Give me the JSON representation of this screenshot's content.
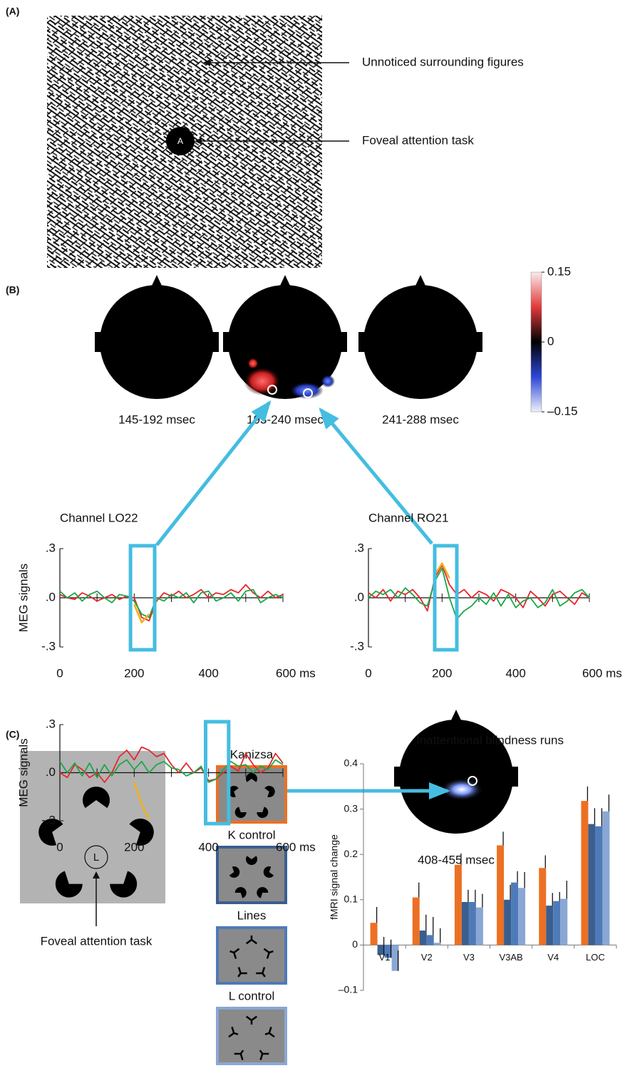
{
  "panel_a": {
    "label": "(A)",
    "fixation_letter": "A",
    "annotations": [
      "Unnoticed surrounding figures",
      "Foveal attention task"
    ]
  },
  "panel_b": {
    "label": "(B)",
    "topomap_labels": [
      "145-192 msec",
      "193-240 msec",
      "241-288 msec",
      "408-455 msec"
    ],
    "colorbar": {
      "lim": [
        -0.15,
        0.15
      ],
      "ticks": [
        0.15,
        0,
        {
          "value": -0.15,
          "label": "–0.15"
        }
      ]
    }
  },
  "panel_c": {
    "label": "(C)",
    "fixation_letter": "L",
    "annotation": "Foveal attention task"
  },
  "chart_data": [
    {
      "type": "line",
      "title": "Channel LO22",
      "y_label": "MEG signals",
      "x": [
        0,
        20,
        40,
        60,
        80,
        100,
        120,
        140,
        160,
        180,
        200,
        220,
        240,
        260,
        280,
        300,
        320,
        340,
        360,
        380,
        400,
        420,
        440,
        460,
        480,
        500,
        520,
        540,
        560,
        580,
        600
      ],
      "series": [
        {
          "color": "#e8262b",
          "values": [
            0.02,
            0.0,
            -0.01,
            0.03,
            0.01,
            -0.02,
            0.0,
            0.02,
            -0.01,
            0.01,
            0.0,
            -0.12,
            -0.14,
            -0.02,
            0.03,
            0.01,
            0.04,
            0.0,
            0.02,
            0.05,
            0.0,
            0.03,
            0.02,
            0.05,
            0.03,
            0.08,
            0.03,
            0.0,
            0.04,
            0.0,
            0.02
          ]
        },
        {
          "color": "#1aa84a",
          "values": [
            0.04,
            0.0,
            0.03,
            -0.02,
            0.02,
            0.04,
            0.0,
            -0.03,
            0.02,
            0.01,
            -0.02,
            -0.1,
            -0.12,
            0.0,
            -0.02,
            0.02,
            0.0,
            0.03,
            -0.03,
            0.03,
            0.04,
            -0.02,
            0.0,
            0.03,
            -0.02,
            0.04,
            0.05,
            -0.03,
            0.0,
            0.02,
            0.0
          ]
        },
        {
          "color": "#f2b01e",
          "values": [
            null,
            null,
            null,
            null,
            null,
            null,
            null,
            null,
            null,
            null,
            -0.04,
            -0.15,
            -0.1,
            null,
            null,
            null,
            null,
            null,
            null,
            null,
            null,
            null,
            null,
            null,
            null,
            null,
            null,
            null,
            null,
            null,
            null
          ]
        }
      ],
      "xlim": [
        0,
        600
      ],
      "ylim": [
        -0.3,
        0.3
      ],
      "xticks": [
        0,
        200,
        400,
        {
          "value": 600,
          "label": "600 ms"
        }
      ],
      "minor_xticks": [
        100,
        300,
        500
      ],
      "yticks": [
        {
          "value": 0.3,
          "label": ".3"
        },
        {
          "value": 0,
          "label": ".0"
        },
        {
          "value": -0.3,
          "label": "-.3"
        }
      ],
      "highlight": [
        190,
        255
      ]
    },
    {
      "type": "line",
      "title": "Channel RO21",
      "x": [
        0,
        20,
        40,
        60,
        80,
        100,
        120,
        140,
        160,
        180,
        200,
        220,
        240,
        260,
        280,
        300,
        320,
        340,
        360,
        380,
        400,
        420,
        440,
        460,
        480,
        500,
        520,
        540,
        560,
        580,
        600
      ],
      "series": [
        {
          "color": "#e8262b",
          "values": [
            0.03,
            0.0,
            0.05,
            -0.02,
            0.04,
            0.02,
            0.05,
            0.0,
            -0.08,
            0.12,
            0.2,
            0.08,
            0.02,
            0.05,
            0.0,
            0.04,
            0.02,
            -0.02,
            0.05,
            0.03,
            0.0,
            -0.06,
            0.04,
            0.0,
            -0.05,
            0.02,
            0.04,
            0.0,
            -0.04,
            0.03,
            0.0
          ]
        },
        {
          "color": "#1aa84a",
          "values": [
            0.0,
            0.04,
            0.02,
            0.05,
            0.0,
            0.06,
            0.02,
            -0.03,
            -0.05,
            0.1,
            0.18,
            0.0,
            -0.13,
            -0.08,
            -0.05,
            0.0,
            -0.04,
            0.03,
            -0.05,
            0.02,
            -0.06,
            -0.02,
            0.0,
            -0.06,
            -0.03,
            0.05,
            -0.05,
            -0.02,
            0.03,
            0.05,
            0.0
          ]
        },
        {
          "color": "#f2b01e",
          "values": [
            null,
            null,
            null,
            null,
            null,
            null,
            null,
            null,
            null,
            0.14,
            0.21,
            0.12,
            null,
            null,
            null,
            null,
            null,
            null,
            null,
            null,
            null,
            null,
            null,
            null,
            null,
            null,
            null,
            null,
            null,
            null,
            null
          ]
        }
      ],
      "xlim": [
        0,
        600
      ],
      "ylim": [
        -0.3,
        0.3
      ],
      "xticks": [
        0,
        200,
        400,
        {
          "value": 600,
          "label": "600 ms"
        }
      ],
      "minor_xticks": [
        100,
        300,
        500
      ],
      "yticks": [
        {
          "value": 0.3,
          "label": ".3"
        },
        {
          "value": 0,
          "label": ".0"
        },
        {
          "value": -0.3,
          "label": "-.3"
        }
      ],
      "highlight": [
        180,
        240
      ]
    },
    {
      "type": "line",
      "y_label": "MEG signals",
      "x": [
        0,
        20,
        40,
        60,
        80,
        100,
        120,
        140,
        160,
        180,
        200,
        220,
        240,
        260,
        280,
        300,
        320,
        340,
        360,
        380,
        400,
        420,
        440,
        460,
        480,
        500,
        520,
        540,
        560,
        580,
        600
      ],
      "series": [
        {
          "color": "#e8262b",
          "values": [
            0.0,
            -0.03,
            0.05,
            0.02,
            -0.03,
            0.0,
            -0.06,
            0.0,
            0.1,
            0.14,
            0.08,
            0.16,
            0.14,
            0.1,
            0.12,
            0.05,
            0.0,
            0.06,
            0.0,
            0.03,
            -0.05,
            -0.04,
            0.0,
            0.04,
            0.01,
            0.12,
            0.05,
            0.0,
            0.03,
            0.12,
            0.06
          ]
        },
        {
          "color": "#1aa84a",
          "values": [
            0.07,
            0.0,
            0.06,
            -0.02,
            0.06,
            -0.03,
            0.05,
            -0.02,
            0.05,
            0.08,
            0.02,
            0.07,
            0.0,
            0.05,
            0.07,
            0.03,
            0.02,
            -0.02,
            0.0,
            0.04,
            -0.06,
            -0.04,
            0.02,
            0.07,
            0.04,
            0.05,
            0.0,
            0.04,
            0.02,
            0.08,
            0.05
          ]
        },
        {
          "color": "#f2b01e",
          "values": [
            null,
            null,
            null,
            null,
            null,
            null,
            null,
            null,
            null,
            null,
            -0.06,
            -0.2,
            -0.29,
            null,
            null,
            null,
            null,
            null,
            null,
            null,
            null,
            null,
            null,
            null,
            null,
            null,
            null,
            null,
            null,
            null,
            null
          ]
        }
      ],
      "xlim": [
        0,
        600
      ],
      "ylim": [
        -0.3,
        0.3
      ],
      "xticks": [
        0,
        200,
        400,
        {
          "value": 600,
          "label": "600 ms"
        }
      ],
      "minor_xticks": [
        100,
        300,
        500
      ],
      "yticks": [
        {
          "value": 0.3,
          "label": ".3"
        },
        {
          "value": 0,
          "label": ".0"
        },
        {
          "value": -0.3,
          "label": "-.3"
        }
      ],
      "highlight": [
        392,
        454
      ]
    },
    {
      "type": "bar",
      "title": "Inattentional blindness runs",
      "y_label": "fMRI signal change",
      "categories": [
        "V1",
        "V2",
        "V3",
        "V3AB",
        "V4",
        "LOC"
      ],
      "series": [
        {
          "name": "Kanizsa",
          "color": "#ec7024",
          "values": [
            0.049,
            0.105,
            0.177,
            0.22,
            0.17,
            0.318
          ],
          "errors": [
            0.035,
            0.033,
            0.025,
            0.03,
            0.028,
            0.032
          ]
        },
        {
          "name": "K control",
          "color": "#3a5f8f",
          "values": [
            -0.022,
            0.032,
            0.095,
            0.1,
            0.087,
            0.267
          ],
          "errors": [
            0.04,
            0.035,
            0.027,
            0.033,
            0.028,
            0.035
          ]
        },
        {
          "name": "Lines",
          "color": "#4f7ab8",
          "values": [
            -0.028,
            0.022,
            0.095,
            0.138,
            0.097,
            0.262
          ],
          "errors": [
            0.04,
            0.04,
            0.027,
            0.025,
            0.02,
            0.04
          ]
        },
        {
          "name": "L control",
          "color": "#8aa6d4",
          "values": [
            -0.057,
            0.005,
            0.083,
            0.126,
            0.102,
            0.295
          ],
          "errors": [
            0.045,
            0.032,
            0.03,
            0.035,
            0.04,
            0.037
          ]
        }
      ],
      "ylim": [
        -0.1,
        0.4
      ],
      "yticks": [
        {
          "value": -0.1,
          "label": "–0.1"
        },
        0,
        0.1,
        0.2,
        0.3,
        0.4
      ]
    }
  ]
}
